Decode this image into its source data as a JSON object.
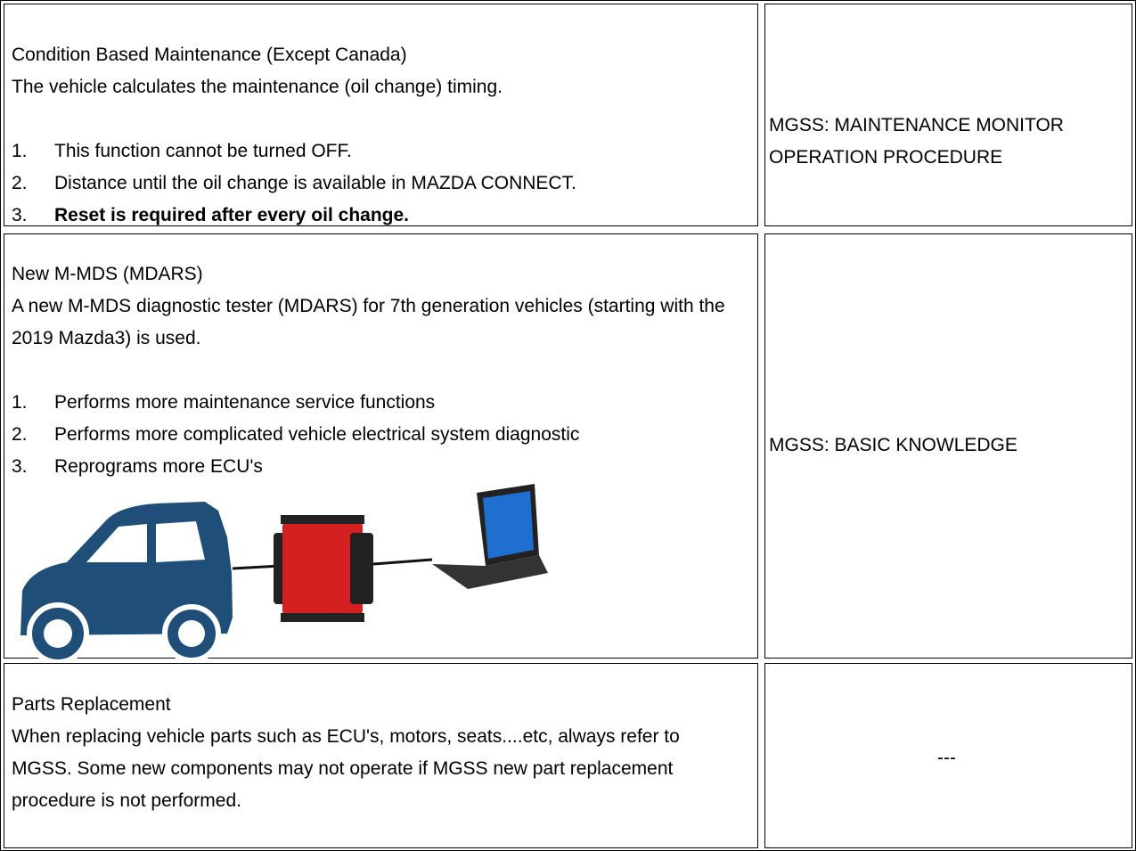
{
  "table": {
    "rows": [
      {
        "title": "Condition Based Maintenance (Except Canada)",
        "description": "The vehicle calculates the maintenance (oil change) timing.",
        "items": [
          {
            "number": "1.",
            "text": "This function cannot be turned OFF."
          },
          {
            "number": "2.",
            "text": "Distance until the oil change is available in MAZDA CONNECT."
          },
          {
            "number": "3.",
            "text": "Reset is required after every oil change."
          }
        ],
        "reference": "MGSS: MAINTENANCE MONITOR OPERATION PROCEDURE"
      },
      {
        "title": "New M-MDS (MDARS)",
        "description": "A new M-MDS diagnostic tester (MDARS) for 7th generation vehicles (starting with the 2019 Mazda3) is used.",
        "items": [
          {
            "number": "1.",
            "text": "Performs more maintenance service functions"
          },
          {
            "number": "2.",
            "text": "Performs more complicated vehicle electrical system diagnostic"
          },
          {
            "number": "3.",
            "text": "Reprograms more ECU's"
          }
        ],
        "reference": "MGSS: BASIC KNOWLEDGE"
      },
      {
        "title": "Parts Replacement",
        "description": "When replacing vehicle parts such as ECU's, motors, seats....etc, always refer to MGSS. Some new components may not operate if MGSS new part replacement procedure is not performed.",
        "reference": "---"
      }
    ]
  }
}
